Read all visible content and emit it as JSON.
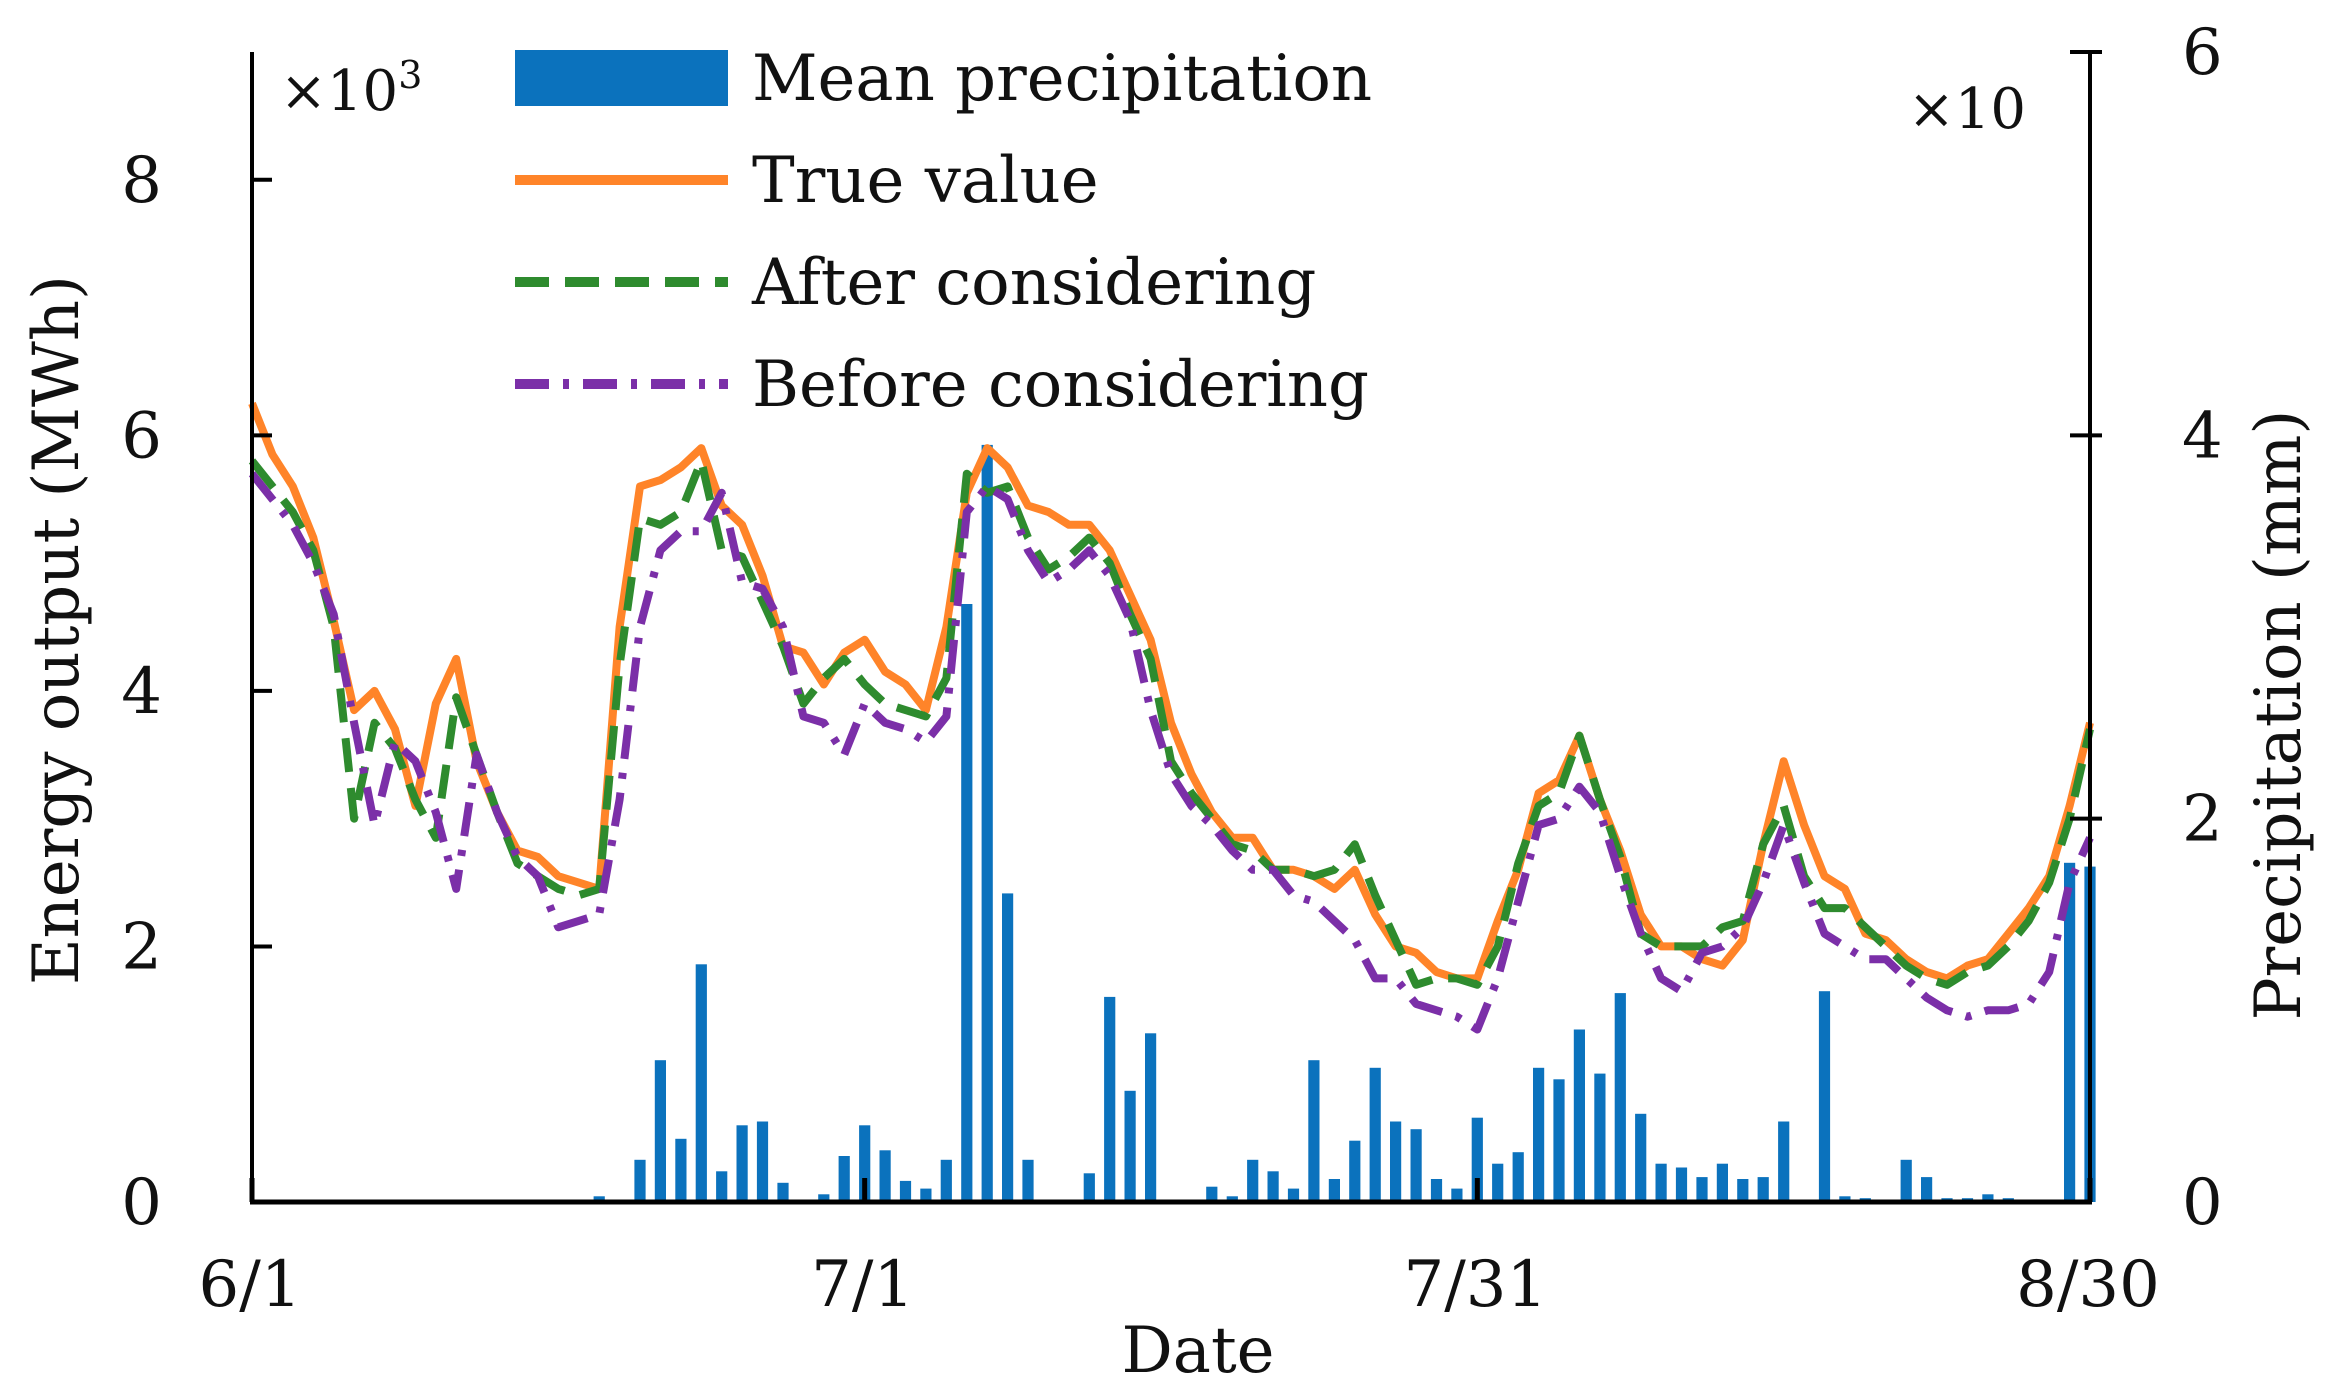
{
  "chart_data": {
    "type": "bar+line",
    "xlabel": "Date",
    "ylabel_left": "Energy output (MWh)",
    "ylabel_right": "Precipitation (mm)",
    "left_multiplier": {
      "base": "×10",
      "exp": "3"
    },
    "right_multiplier": "×10",
    "x_range": [
      1,
      91
    ],
    "x_ticks": [
      {
        "day": 1,
        "label": "6/1"
      },
      {
        "day": 31,
        "label": "7/1"
      },
      {
        "day": 61,
        "label": "7/31"
      },
      {
        "day": 91,
        "label": "8/30"
      }
    ],
    "y_left": {
      "range": [
        0,
        9
      ],
      "ticks": [
        0,
        2,
        4,
        6,
        8
      ],
      "labels": [
        "0",
        "2",
        "4",
        "6",
        "8"
      ]
    },
    "y_right": {
      "range": [
        0,
        6
      ],
      "ticks": [
        0,
        2,
        4,
        6
      ],
      "labels": [
        "0",
        "2",
        "4",
        "6"
      ]
    },
    "legend": [
      {
        "label": "Mean precipitation",
        "kind": "bar",
        "color": "#0b72bd"
      },
      {
        "label": "True value",
        "kind": "line",
        "color": "#ff8429"
      },
      {
        "label": "After considering",
        "kind": "dashed",
        "color": "#2e8b2e"
      },
      {
        "label": "Before considering",
        "kind": "dashdot",
        "color": "#7b2fa8"
      }
    ],
    "series": [
      {
        "name": "Mean precipitation",
        "axis": "right",
        "color": "#0b72bd",
        "x": [
          18,
          20,
          21,
          22,
          23,
          24,
          25,
          26,
          27,
          29,
          30,
          31,
          32,
          33,
          34,
          35,
          36,
          37,
          38,
          39,
          40,
          42,
          43,
          44,
          45,
          46,
          48,
          49,
          50,
          51,
          52,
          53,
          54,
          55,
          56,
          57,
          58,
          59,
          60,
          61,
          62,
          63,
          64,
          65,
          66,
          67,
          68,
          69,
          70,
          71,
          72,
          73,
          74,
          75,
          76,
          78,
          79,
          80,
          82,
          83,
          84,
          85,
          86,
          87,
          90,
          91
        ],
        "values": [
          0.03,
          0.22,
          0.74,
          0.33,
          1.24,
          0.16,
          0.4,
          0.42,
          0.1,
          0.04,
          0.24,
          0.4,
          0.27,
          0.11,
          0.07,
          0.22,
          3.12,
          3.95,
          1.61,
          0.22,
          0.01,
          0.15,
          1.07,
          0.58,
          0.88,
          0.01,
          0.08,
          0.03,
          0.22,
          0.16,
          0.07,
          0.74,
          0.12,
          0.32,
          0.7,
          0.42,
          0.38,
          0.12,
          0.07,
          0.44,
          0.2,
          0.26,
          0.7,
          0.64,
          0.9,
          0.67,
          1.09,
          0.46,
          0.2,
          0.18,
          0.13,
          0.2,
          0.12,
          0.13,
          0.42,
          1.1,
          0.03,
          0.02,
          0.22,
          0.13,
          0.02,
          0.02,
          0.04,
          0.02,
          1.77,
          1.75
        ]
      },
      {
        "name": "True value",
        "axis": "left",
        "color": "#ff8429",
        "values": [
          6.25,
          5.85,
          5.6,
          5.2,
          4.55,
          3.85,
          4.0,
          3.7,
          3.1,
          3.9,
          4.25,
          3.45,
          3.05,
          2.75,
          2.7,
          2.55,
          2.5,
          2.45,
          4.5,
          5.6,
          5.65,
          5.75,
          5.9,
          5.45,
          5.3,
          4.9,
          4.35,
          4.3,
          4.05,
          4.3,
          4.4,
          4.15,
          4.05,
          3.85,
          4.5,
          5.55,
          5.9,
          5.75,
          5.45,
          5.4,
          5.3,
          5.3,
          5.1,
          4.75,
          4.4,
          3.75,
          3.35,
          3.05,
          2.85,
          2.85,
          2.6,
          2.6,
          2.55,
          2.45,
          2.6,
          2.25,
          2.0,
          1.95,
          1.8,
          1.75,
          1.75,
          2.2,
          2.6,
          3.2,
          3.3,
          3.65,
          3.15,
          2.75,
          2.25,
          2.0,
          2.0,
          1.9,
          1.85,
          2.05,
          2.8,
          3.45,
          2.95,
          2.55,
          2.45,
          2.1,
          2.05,
          1.9,
          1.8,
          1.75,
          1.85,
          1.9,
          2.1,
          2.3,
          2.55,
          3.1,
          3.75
        ]
      },
      {
        "name": "After considering",
        "axis": "left",
        "color": "#2e8b2e",
        "values": [
          5.8,
          5.6,
          5.4,
          5.1,
          4.5,
          3.0,
          3.75,
          3.55,
          3.15,
          2.85,
          3.95,
          3.5,
          3.05,
          2.65,
          2.55,
          2.45,
          2.4,
          2.45,
          4.2,
          5.35,
          5.3,
          5.4,
          5.8,
          5.1,
          5.05,
          4.7,
          4.35,
          3.9,
          4.1,
          4.25,
          4.05,
          3.9,
          3.85,
          3.8,
          4.1,
          5.7,
          5.55,
          5.6,
          5.2,
          4.95,
          5.05,
          5.2,
          5.0,
          4.6,
          4.25,
          3.45,
          3.2,
          3.0,
          2.8,
          2.75,
          2.6,
          2.6,
          2.55,
          2.6,
          2.8,
          2.4,
          2.05,
          1.7,
          1.75,
          1.75,
          1.7,
          2.0,
          2.65,
          3.1,
          3.2,
          3.65,
          3.15,
          2.7,
          2.1,
          2.0,
          2.0,
          2.0,
          2.15,
          2.2,
          2.8,
          3.1,
          2.55,
          2.3,
          2.3,
          2.15,
          2.0,
          1.85,
          1.75,
          1.7,
          1.8,
          1.85,
          2.0,
          2.2,
          2.5,
          3.0,
          3.7
        ]
      },
      {
        "name": "Before considering",
        "axis": "left",
        "color": "#7b2fa8",
        "values": [
          5.7,
          5.5,
          5.3,
          5.0,
          4.6,
          3.75,
          2.95,
          3.6,
          3.45,
          3.05,
          2.45,
          3.5,
          3.05,
          2.7,
          2.55,
          2.15,
          2.2,
          2.25,
          3.15,
          4.5,
          5.1,
          5.25,
          5.25,
          5.55,
          4.85,
          4.8,
          4.5,
          3.8,
          3.75,
          3.5,
          3.9,
          3.75,
          3.7,
          3.6,
          3.8,
          5.4,
          5.6,
          5.5,
          5.1,
          4.85,
          4.95,
          5.1,
          4.9,
          4.55,
          3.85,
          3.35,
          3.1,
          2.95,
          2.75,
          2.6,
          2.6,
          2.4,
          2.35,
          2.2,
          2.05,
          1.75,
          1.75,
          1.55,
          1.5,
          1.45,
          1.35,
          1.75,
          2.35,
          2.95,
          3.0,
          3.25,
          3.05,
          2.55,
          2.1,
          1.75,
          1.65,
          1.95,
          2.0,
          2.15,
          2.5,
          2.95,
          2.5,
          2.1,
          2.0,
          1.9,
          1.9,
          1.75,
          1.6,
          1.5,
          1.45,
          1.5,
          1.5,
          1.55,
          1.8,
          2.5,
          2.85
        ]
      }
    ]
  }
}
